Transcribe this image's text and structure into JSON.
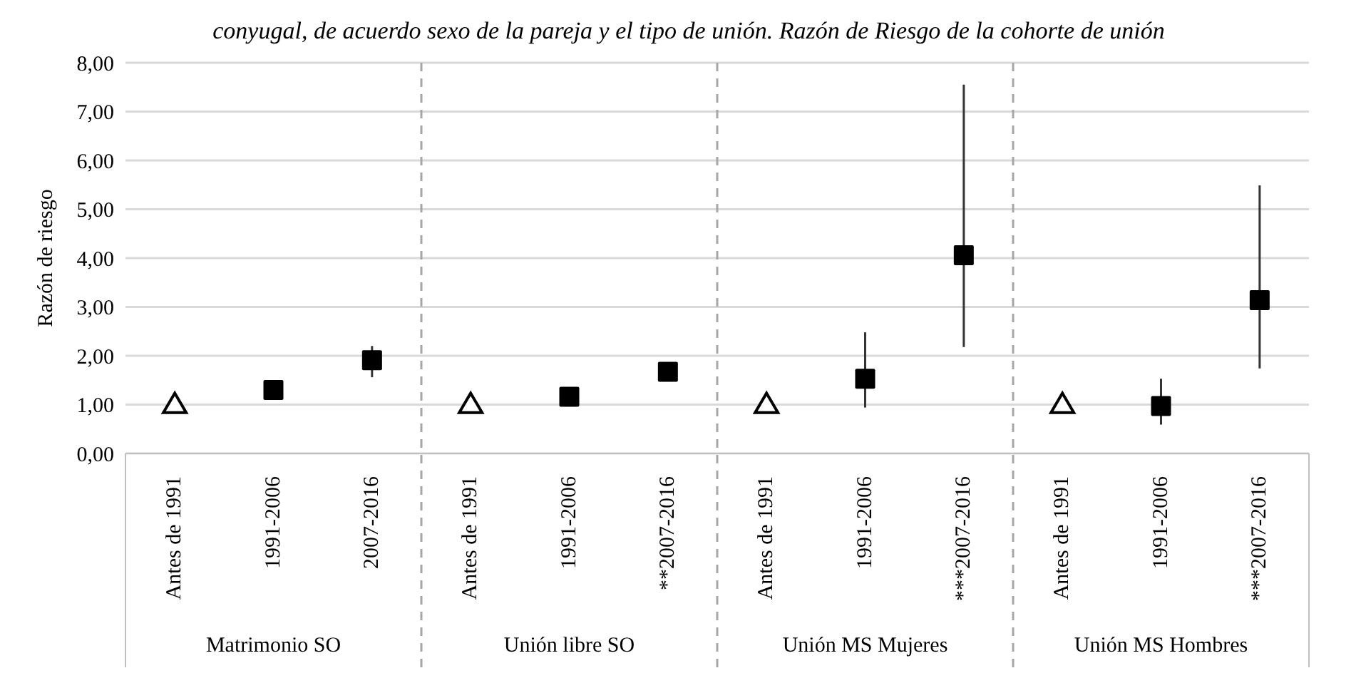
{
  "chart_data": {
    "type": "scatter",
    "title": "conyugal, de acuerdo sexo de la pareja y el tipo de unión. Razón de Riesgo de la cohorte de unión",
    "ylabel": "Razón de riesgo",
    "categories": [
      "Antes de 1991",
      "1991-2006",
      "2007-2016",
      "Antes de 1991",
      "1991-2006",
      "**2007-2016",
      "Antes de 1991",
      "1991-2006",
      "***2007-2016",
      "Antes de 1991",
      "1991-2006",
      "***2007-2016"
    ],
    "annotations": [
      "Matrimonio SO",
      "Unión libre SO",
      "Unión MS Mujeres",
      "Unión MS Hombres"
    ],
    "series": [
      {
        "color": "#000000",
        "marker": "triangle",
        "values": [
          1,
          null,
          null,
          1,
          null,
          null,
          1,
          null,
          null,
          1,
          null,
          null
        ]
      },
      {
        "color": "#000000",
        "marker": "square",
        "values": [
          null,
          1.3,
          1.91,
          null,
          1.16,
          1.67,
          null,
          1.53,
          4.06,
          null,
          0.97,
          3.14
        ],
        "errors": [
          null,
          null,
          [
            1.56,
            2.2
          ],
          null,
          null,
          null,
          null,
          [
            0.94,
            2.48
          ],
          [
            2.18,
            7.55
          ],
          null,
          [
            0.59,
            1.53
          ],
          [
            1.74,
            5.49
          ]
        ]
      }
    ],
    "ylim": [
      0,
      8
    ],
    "yticks": [
      {
        "value": 0,
        "label": "0,00"
      },
      {
        "value": 1,
        "label": "1,00"
      },
      {
        "value": 2,
        "label": "2,00"
      },
      {
        "value": 3,
        "label": "3,00"
      },
      {
        "value": 4,
        "label": "4,00"
      },
      {
        "value": 5,
        "label": "5,00"
      },
      {
        "value": 6,
        "label": "6,00"
      },
      {
        "value": 7,
        "label": "7,00"
      },
      {
        "value": 8,
        "label": "8,00"
      }
    ],
    "grid": "y"
  }
}
